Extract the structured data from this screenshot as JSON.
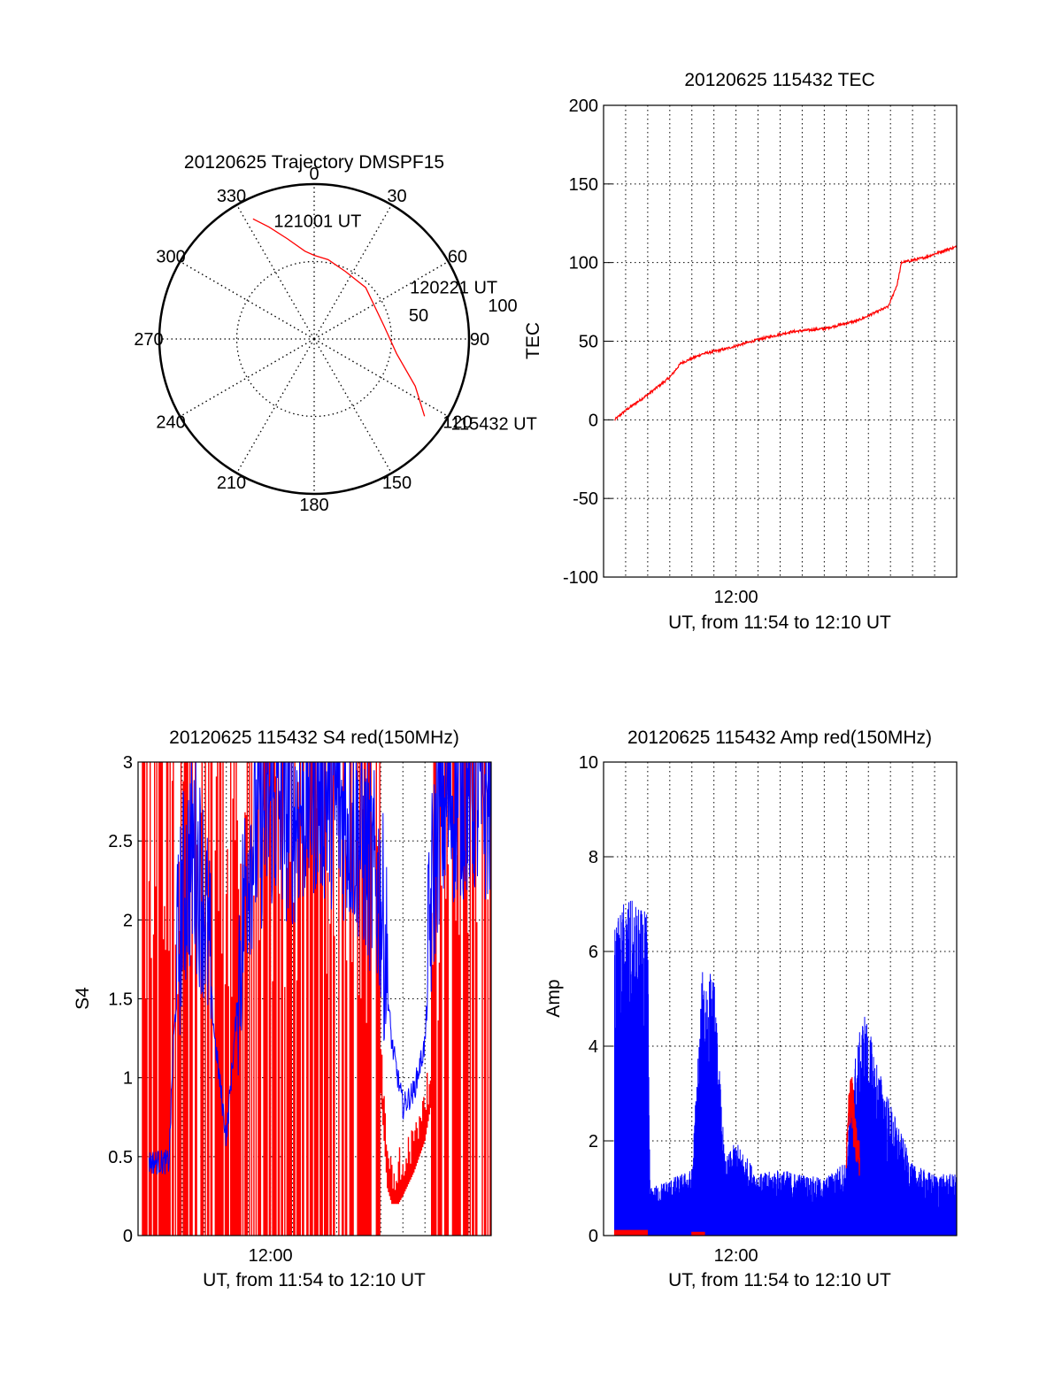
{
  "colors": {
    "red": "#ff0000",
    "blue": "#0000ff",
    "axis": "#000000",
    "grid": "#000000"
  },
  "chart_data": [
    {
      "id": "polar",
      "type": "scatter",
      "title": "20120625 Trajectory DMSPF15",
      "angle_labels": [
        "0",
        "30",
        "60",
        "90",
        "120",
        "150",
        "180",
        "210",
        "240",
        "270",
        "300",
        "330"
      ],
      "radial_labels": [
        "50",
        "100"
      ],
      "rmax": 100,
      "grid": true,
      "track": {
        "az": [
          333,
          338,
          345,
          354,
          0,
          10,
          25,
          45,
          80,
          100,
          115,
          125
        ],
        "r": [
          87,
          78,
          67,
          57,
          54,
          52,
          48,
          47,
          46,
          54,
          72,
          87
        ]
      },
      "annotations": [
        {
          "text": "121001 UT",
          "az": 341,
          "r": 80
        },
        {
          "text": "120221 UT",
          "az": 62,
          "r": 70
        },
        {
          "text": "115432 UT",
          "az": 122,
          "r": 104
        }
      ]
    },
    {
      "id": "tec",
      "type": "line",
      "title": "20120625 115432 TEC",
      "xlabel": "UT, from 11:54 to 12:10 UT",
      "ylabel": "TEC",
      "xlim": [
        0,
        16
      ],
      "ylim": [
        -100,
        200
      ],
      "yticks": [
        "200",
        "150",
        "100",
        "50",
        "0",
        "-50",
        "-100"
      ],
      "xtick_labels": [
        {
          "x": 6,
          "label": "12:00"
        }
      ],
      "grid": true,
      "series": [
        {
          "color": "red",
          "x": [
            0.5,
            1.0,
            2.0,
            3.0,
            3.5,
            4.5,
            5.5,
            7.0,
            8.5,
            10.0,
            11.5,
            12.9,
            13.3,
            13.5,
            14.5,
            15.5,
            16.0
          ],
          "y": [
            0,
            6,
            16,
            27,
            36,
            42,
            45,
            51,
            56,
            58,
            63,
            72,
            86,
            100,
            103,
            108,
            110
          ]
        }
      ]
    },
    {
      "id": "s4",
      "type": "line",
      "title": "20120625 115432 S4 red(150MHz)",
      "xlabel": "UT, from 11:54 to 12:10 UT",
      "ylabel": "S4",
      "xlim": [
        0,
        16
      ],
      "ylim": [
        0,
        3
      ],
      "yticks": [
        "3",
        "2.5",
        "2",
        "1.5",
        "1",
        "0.5",
        "0"
      ],
      "xtick_labels": [
        {
          "x": 6,
          "label": "12:00"
        }
      ],
      "grid": true,
      "series": [
        {
          "color": "red",
          "x": [
            0.2,
            1.0,
            2.0,
            3.0,
            4.0,
            5.0,
            6.0,
            7.0,
            8.0,
            9.0,
            10.0,
            11.0,
            11.3,
            11.6,
            12.0,
            12.5,
            13.0,
            13.6,
            14.0,
            15.0,
            16.0
          ],
          "y": [
            1.5,
            1.5,
            1.5,
            1.5,
            1.5,
            1.5,
            1.5,
            1.5,
            1.5,
            1.5,
            1.5,
            1.0,
            0.4,
            0.25,
            0.35,
            0.5,
            0.7,
            1.2,
            1.5,
            1.5,
            1.5
          ]
        },
        {
          "color": "blue",
          "x": [
            0.5,
            1.0,
            1.4,
            1.6,
            2.0,
            2.5,
            3.0,
            3.5,
            4.0,
            5.0,
            6.0,
            7.0,
            8.0,
            9.0,
            10.0,
            11.0,
            11.5,
            12.0,
            12.5,
            13.0,
            13.3,
            13.6,
            14.0,
            15.0,
            16.0
          ],
          "y": [
            0.45,
            0.45,
            0.45,
            1.2,
            2.0,
            2.3,
            2.0,
            1.2,
            0.6,
            2.3,
            2.6,
            2.5,
            2.7,
            2.6,
            2.4,
            2.0,
            1.2,
            0.8,
            0.9,
            1.2,
            2.0,
            2.5,
            2.6,
            2.7,
            2.6
          ]
        }
      ]
    },
    {
      "id": "amp",
      "type": "line",
      "title": "20120625 115432 Amp red(150MHz)",
      "xlabel": "UT, from 11:54 to 12:10 UT",
      "ylabel": "Amp",
      "xlim": [
        0,
        16
      ],
      "ylim": [
        0,
        10
      ],
      "yticks": [
        "10",
        "8",
        "6",
        "4",
        "2",
        "0"
      ],
      "xtick_labels": [
        {
          "x": 6,
          "label": "12:00"
        }
      ],
      "grid": true,
      "series": [
        {
          "color": "blue",
          "x": [
            0.5,
            1.0,
            1.5,
            2.0,
            2.1,
            3.0,
            4.0,
            4.5,
            5.0,
            5.5,
            6.0,
            7.0,
            8.0,
            9.0,
            10.0,
            11.0,
            11.2,
            11.8,
            12.5,
            13.0,
            14.0,
            15.0,
            16.0
          ],
          "y": [
            6.5,
            7.2,
            7.0,
            6.8,
            1.0,
            1.2,
            1.4,
            5.8,
            5.5,
            1.6,
            2.0,
            1.3,
            1.4,
            1.3,
            1.2,
            1.6,
            3.3,
            4.8,
            3.5,
            2.8,
            1.5,
            1.3,
            1.3
          ]
        },
        {
          "color": "red",
          "x": [
            0.5,
            1.0,
            1.5,
            2.0,
            4.0,
            4.5,
            11.0,
            11.2,
            11.4,
            11.6
          ],
          "y": [
            0.1,
            0.1,
            0.1,
            0.1,
            0.1,
            0.05,
            2.0,
            4.0,
            2.5,
            2.0
          ]
        }
      ]
    }
  ]
}
